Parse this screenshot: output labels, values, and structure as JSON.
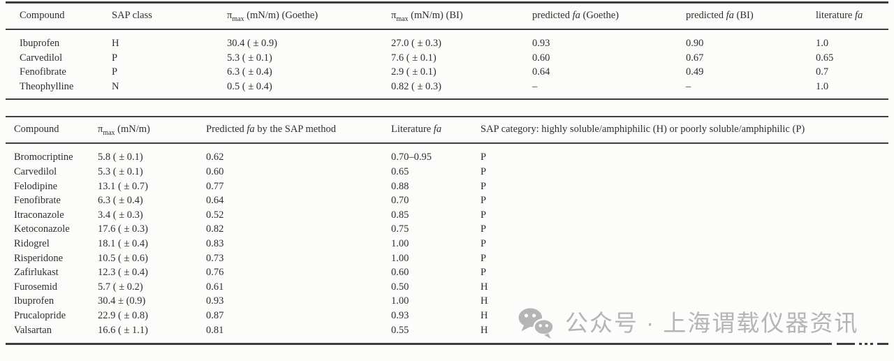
{
  "colors": {
    "text": "#2f2f2f",
    "rule": "#3d3d3d",
    "watermark_gray": "#b5b5b5",
    "background": "#fcfcfb"
  },
  "table1": {
    "headers": [
      "Compound",
      "SAP class",
      "π_{max} (mN/m) (Goethe)",
      "π_{max} (mN/m) (BI)",
      "predicted *fa* (Goethe)",
      "predicted *fa* (BI)",
      "literature *fa*"
    ],
    "rows": [
      [
        "Ibuprofen",
        "H",
        "30.4 ( ± 0.9)",
        "27.0 ( ± 0.3)",
        "0.93",
        "0.90",
        "1.0"
      ],
      [
        "Carvedilol",
        "P",
        "5.3 ( ± 0.1)",
        "7.6 ( ± 0.1)",
        "0.60",
        "0.67",
        "0.65"
      ],
      [
        "Fenofibrate",
        "P",
        "6.3 ( ± 0.4)",
        "2.9 ( ± 0.1)",
        "0.64",
        "0.49",
        "0.7"
      ],
      [
        "Theophylline",
        "N",
        "0.5 ( ± 0.4)",
        "0.82 ( ± 0.3)",
        "–",
        "–",
        "1.0"
      ]
    ]
  },
  "table2": {
    "headers": [
      "Compound",
      "π_{max} (mN/m)",
      "Predicted *fa* by the SAP method",
      "Literature *fa*",
      "SAP category: highly soluble/amphiphilic (H) or poorly soluble/amphiphilic (P)"
    ],
    "rows": [
      [
        "Bromocriptine",
        "5.8 ( ± 0.1)",
        "0.62",
        "0.70–0.95",
        "P"
      ],
      [
        "Carvedilol",
        "5.3 ( ± 0.1)",
        "0.60",
        "0.65",
        "P"
      ],
      [
        "Felodipine",
        "13.1 ( ± 0.7)",
        "0.77",
        "0.88",
        "P"
      ],
      [
        "Fenofibrate",
        "6.3 ( ± 0.4)",
        "0.64",
        "0.70",
        "P"
      ],
      [
        "Itraconazole",
        "3.4 ( ± 0.3)",
        "0.52",
        "0.85",
        "P"
      ],
      [
        "Ketoconazole",
        "17.6 ( ± 0.3)",
        "0.82",
        "0.75",
        "P"
      ],
      [
        "Ridogrel",
        "18.1 ( ± 0.4)",
        "0.83",
        "1.00",
        "P"
      ],
      [
        "Risperidone",
        "10.5 ( ± 0.6)",
        "0.73",
        "1.00",
        "P"
      ],
      [
        "Zafirlukast",
        "12.3 ( ± 0.4)",
        "0.76",
        "0.60",
        "P"
      ],
      [
        "Furosemid",
        "5.7 ( ± 0.2)",
        "0.61",
        "0.50",
        "H"
      ],
      [
        "Ibuprofen",
        "30.4 ± (0.9)",
        "0.93",
        "1.00",
        "H"
      ],
      [
        "Prucalopride",
        "22.9 ( ± 0.8)",
        "0.87",
        "0.93",
        "H"
      ],
      [
        "Valsartan",
        "16.6 ( ± 1.1)",
        "0.81",
        "0.55",
        "H"
      ]
    ]
  },
  "watermark": {
    "icon": "wechat-icon",
    "text": "公众号 · 上海谓载仪器资讯"
  }
}
